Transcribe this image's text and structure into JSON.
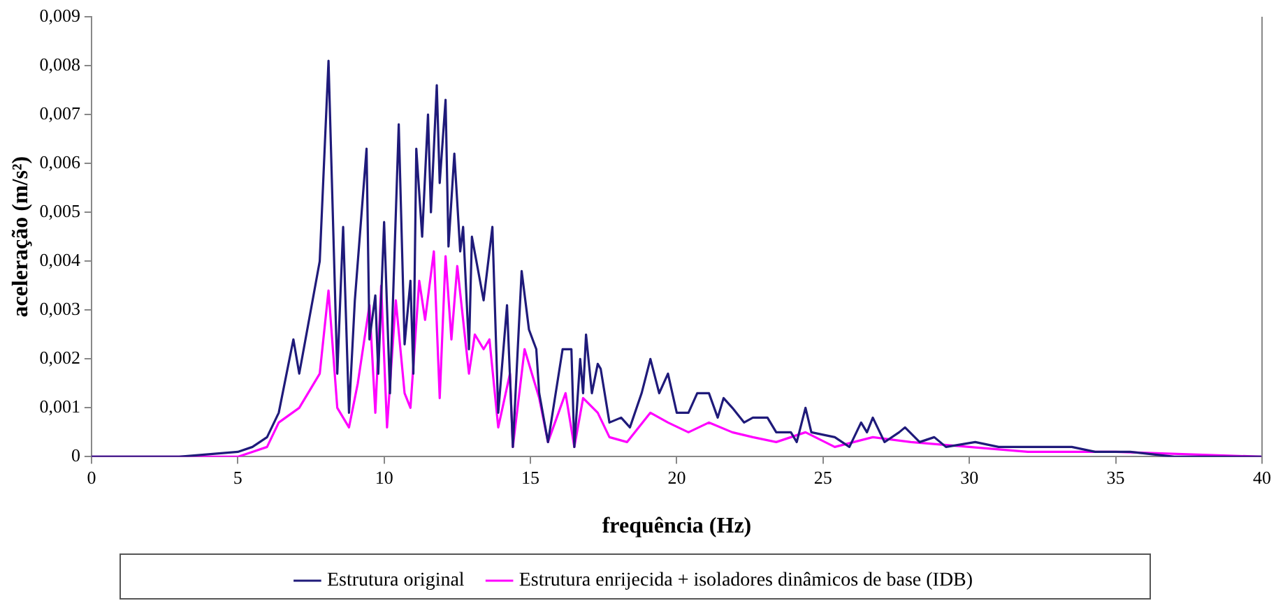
{
  "chart_data": {
    "type": "line",
    "xlabel": "frequência (Hz)",
    "ylabel": "aceleração (m/s²)",
    "xlim": [
      0,
      40
    ],
    "xticks": [
      0,
      5,
      10,
      15,
      20,
      25,
      30,
      35,
      40
    ],
    "ylim": [
      0,
      0.009
    ],
    "yticks": [
      0,
      {
        "value": 0.001,
        "label": "0,001"
      },
      {
        "value": 0.002,
        "label": "0,002"
      },
      {
        "value": 0.003,
        "label": "0,003"
      },
      {
        "value": 0.004,
        "label": "0,004"
      },
      {
        "value": 0.005,
        "label": "0,005"
      },
      {
        "value": 0.006,
        "label": "0,006"
      },
      {
        "value": 0.007,
        "label": "0,007"
      },
      {
        "value": 0.008,
        "label": "0,008"
      },
      {
        "value": 0.009,
        "label": "0,009"
      }
    ],
    "grid": false,
    "legend": "bottom",
    "marker": "none",
    "line_style": "solid",
    "series": [
      {
        "name": "Estrutura original",
        "color": "#1f1a7a",
        "x": [
          0,
          3,
          5,
          5.5,
          6,
          6.4,
          6.9,
          7.1,
          7.8,
          8.1,
          8.4,
          8.6,
          8.8,
          9.0,
          9.4,
          9.5,
          9.7,
          9.8,
          10.0,
          10.2,
          10.5,
          10.7,
          10.9,
          11.0,
          11.1,
          11.3,
          11.5,
          11.6,
          11.8,
          11.9,
          12.1,
          12.2,
          12.4,
          12.6,
          12.7,
          12.9,
          13.0,
          13.4,
          13.7,
          13.9,
          14.2,
          14.4,
          14.7,
          14.95,
          15.2,
          15.3,
          15.6,
          16.1,
          16.4,
          16.5,
          16.7,
          16.8,
          16.9,
          17.1,
          17.3,
          17.4,
          17.7,
          18.1,
          18.4,
          18.8,
          19.1,
          19.4,
          19.7,
          20.0,
          20.4,
          20.7,
          21.1,
          21.4,
          21.6,
          21.9,
          22.3,
          22.6,
          23.1,
          23.4,
          23.9,
          24.1,
          24.4,
          24.6,
          25.4,
          25.9,
          26.3,
          26.5,
          26.7,
          27.1,
          27.6,
          27.8,
          28.3,
          28.8,
          29.2,
          30.2,
          31.0,
          31.8,
          33.5,
          34.3,
          35.5,
          37,
          40
        ],
        "values": [
          0,
          0,
          0.0001,
          0.0002,
          0.0004,
          0.0009,
          0.0024,
          0.0017,
          0.004,
          0.0081,
          0.0017,
          0.0047,
          0.0009,
          0.0032,
          0.0063,
          0.0024,
          0.0033,
          0.0017,
          0.0048,
          0.0013,
          0.0068,
          0.0023,
          0.0036,
          0.0017,
          0.0063,
          0.0045,
          0.007,
          0.005,
          0.0076,
          0.0056,
          0.0073,
          0.0043,
          0.0062,
          0.0042,
          0.0047,
          0.0022,
          0.0045,
          0.0032,
          0.0047,
          0.0009,
          0.0031,
          0.0002,
          0.0038,
          0.0026,
          0.0022,
          0.0013,
          0.0003,
          0.0022,
          0.0022,
          0.0002,
          0.002,
          0.0013,
          0.0025,
          0.0013,
          0.0019,
          0.0018,
          0.0007,
          0.0008,
          0.0006,
          0.0013,
          0.002,
          0.0013,
          0.0017,
          0.0009,
          0.0009,
          0.0013,
          0.0013,
          0.0008,
          0.0012,
          0.001,
          0.0007,
          0.0008,
          0.0008,
          0.0005,
          0.0005,
          0.0003,
          0.001,
          0.0005,
          0.0004,
          0.0002,
          0.0007,
          0.0005,
          0.0008,
          0.0003,
          0.0005,
          0.0006,
          0.0003,
          0.0004,
          0.0002,
          0.0003,
          0.0002,
          0.0002,
          0.0002,
          0.0001,
          0.0001,
          0,
          0
        ]
      },
      {
        "name": "Estrutura enrijecida + isoladores dinâmicos de base (IDB)",
        "color": "#ff00ff",
        "x": [
          0,
          3,
          5,
          5.5,
          6,
          6.4,
          7.1,
          7.8,
          8.1,
          8.4,
          8.8,
          9.1,
          9.5,
          9.7,
          9.9,
          10.1,
          10.4,
          10.7,
          10.9,
          11.2,
          11.4,
          11.7,
          11.9,
          12.1,
          12.3,
          12.5,
          12.9,
          13.1,
          13.4,
          13.6,
          13.9,
          14.3,
          14.4,
          14.8,
          15.3,
          15.6,
          16.2,
          16.5,
          16.8,
          17.3,
          17.7,
          18.3,
          19.1,
          19.7,
          20.4,
          21.1,
          21.9,
          22.6,
          23.4,
          24.4,
          25.4,
          26.7,
          28,
          30,
          32,
          35,
          40
        ],
        "values": [
          0,
          0,
          0,
          0.0001,
          0.0002,
          0.0007,
          0.001,
          0.0017,
          0.0034,
          0.001,
          0.0006,
          0.0015,
          0.0031,
          0.0009,
          0.0035,
          0.0006,
          0.0032,
          0.0013,
          0.001,
          0.0036,
          0.0028,
          0.0042,
          0.0012,
          0.0041,
          0.0024,
          0.0039,
          0.0017,
          0.0025,
          0.0022,
          0.0024,
          0.0006,
          0.0017,
          0.0002,
          0.0022,
          0.0012,
          0.0003,
          0.0013,
          0.0002,
          0.0012,
          0.0009,
          0.0004,
          0.0003,
          0.0009,
          0.0007,
          0.0005,
          0.0007,
          0.0005,
          0.0004,
          0.0003,
          0.0005,
          0.0002,
          0.0004,
          0.0003,
          0.0002,
          0.0001,
          0.0001,
          0
        ]
      }
    ]
  }
}
